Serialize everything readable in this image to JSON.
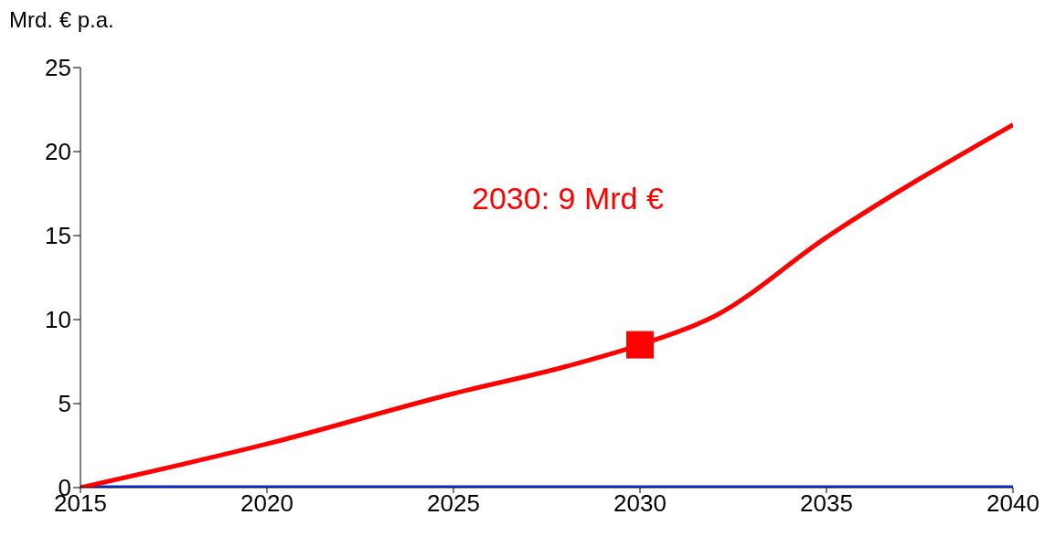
{
  "chart_data": {
    "type": "line",
    "ylabel": "Mrd. € p.a.",
    "xlim": [
      2015,
      2040
    ],
    "xticks": [
      2015,
      2020,
      2025,
      2030,
      2035,
      2040
    ],
    "ylim": [
      0,
      25
    ],
    "yticks": [
      0,
      5,
      10,
      15,
      20,
      25
    ],
    "grid": false,
    "annotations": [
      "2030: 9 Mrd €"
    ],
    "series": [
      {
        "color": "#0033ee",
        "x": [
          2015,
          2040
        ],
        "values": [
          0,
          0
        ]
      },
      {
        "color": "#ff0000",
        "x": [
          2015,
          2020,
          2025,
          2028,
          2030,
          2032,
          2035,
          2040
        ],
        "values": [
          0,
          2.6,
          5.6,
          7.2,
          8.5,
          10.2,
          14.9,
          21.6
        ]
      },
      {
        "type": "scatter",
        "marker": "square",
        "color": "#ff0000",
        "x": [
          2030
        ],
        "values": [
          8.5
        ]
      }
    ]
  }
}
